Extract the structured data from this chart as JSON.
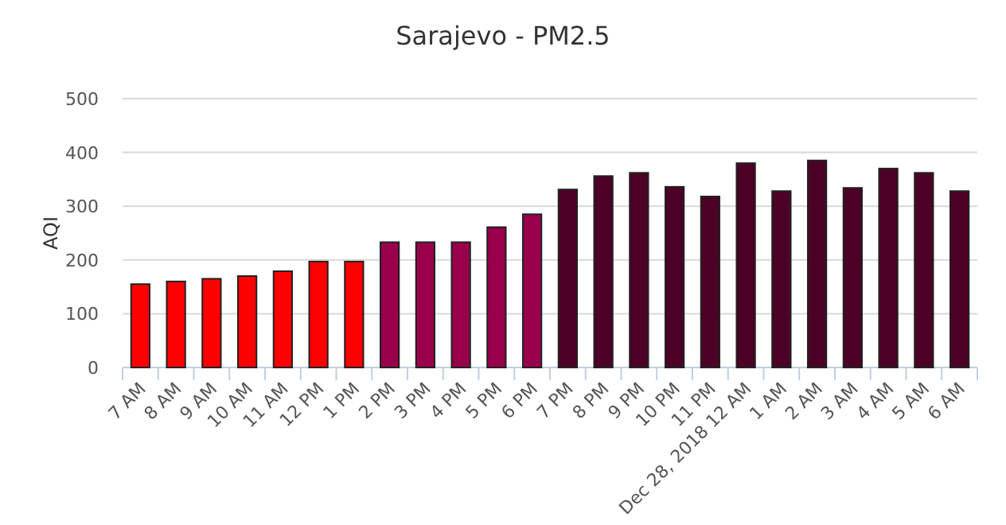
{
  "chart_data": {
    "type": "bar",
    "title": "Sarajevo - PM2.5",
    "ylabel": "AQI",
    "categories": [
      "7 AM",
      "8 AM",
      "9 AM",
      "10 AM",
      "11 AM",
      "12 PM",
      "1 PM",
      "2 PM",
      "3 PM",
      "4 PM",
      "5 PM",
      "6 PM",
      "7 PM",
      "8 PM",
      "9 PM",
      "10 PM",
      "11 PM",
      "Dec 28, 2018 12 AM",
      "1 AM",
      "2 AM",
      "3 AM",
      "4 AM",
      "5 AM",
      "6 AM"
    ],
    "values": [
      155,
      160,
      165,
      170,
      179,
      197,
      197,
      233,
      233,
      233,
      261,
      285,
      331,
      356,
      362,
      336,
      318,
      380,
      328,
      385,
      334,
      370,
      362,
      328
    ],
    "colors": [
      "#ff0000",
      "#ff0000",
      "#ff0000",
      "#ff0000",
      "#ff0000",
      "#ff0000",
      "#ff0000",
      "#99004c",
      "#99004c",
      "#99004c",
      "#99004c",
      "#99004c",
      "#4c0026",
      "#4c0026",
      "#4c0026",
      "#4c0026",
      "#4c0026",
      "#4c0026",
      "#4c0026",
      "#4c0026",
      "#4c0026",
      "#4c0026",
      "#4c0026",
      "#4c0026"
    ],
    "ylim": [
      0,
      500
    ],
    "yticks": [
      0,
      100,
      200,
      300,
      400,
      500
    ],
    "grid": "y"
  }
}
